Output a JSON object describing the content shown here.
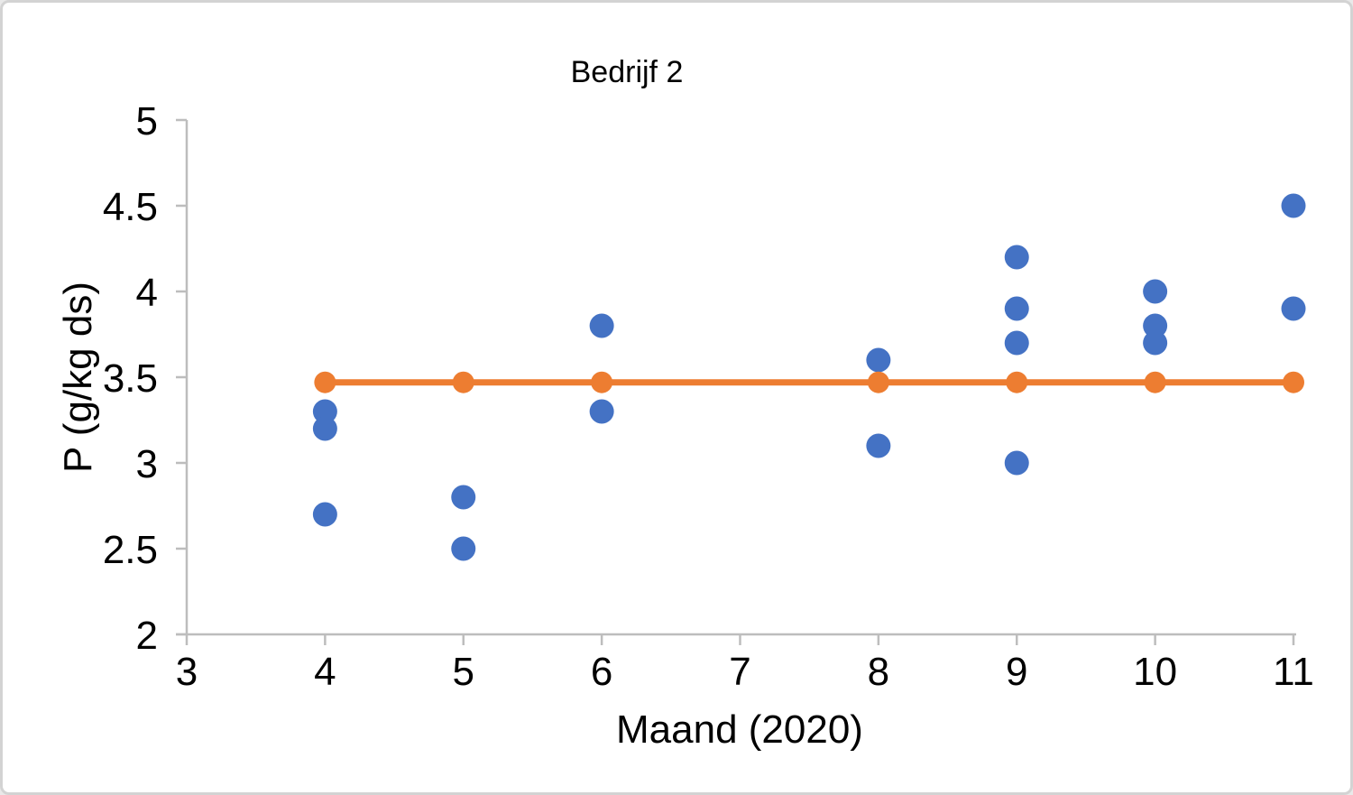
{
  "frame": {
    "background": "#FFFFFF",
    "border_color": "#D3D3D3"
  },
  "chart_data": {
    "type": "scatter",
    "title": "Bedrijf 2",
    "xlabel": "Maand (2020)",
    "ylabel": "P (g/kg ds)",
    "xlim": [
      3,
      11
    ],
    "ylim": [
      2,
      5
    ],
    "x_ticks": [
      3,
      4,
      5,
      6,
      7,
      8,
      9,
      10,
      11
    ],
    "x_tick_labels": [
      "3",
      "4",
      "5",
      "6",
      "7",
      "8",
      "9",
      "10",
      "11"
    ],
    "y_ticks": [
      2,
      2.5,
      3,
      3.5,
      4,
      4.5,
      5
    ],
    "y_tick_labels": [
      "2",
      "2.5",
      "3",
      "3.5",
      "4",
      "4.5",
      "5"
    ],
    "grid": false,
    "legend_position": "none",
    "axis_color": "#BDBDBD",
    "text_color": "#000000",
    "series": [
      {
        "name": "series-blue-measurements",
        "type": "scatter",
        "color": "#4472C4",
        "marker_radius": 13.5,
        "points": [
          [
            4,
            3.3
          ],
          [
            4,
            3.2
          ],
          [
            4,
            2.7
          ],
          [
            5,
            2.8
          ],
          [
            5,
            2.5
          ],
          [
            6,
            3.8
          ],
          [
            6,
            3.3
          ],
          [
            8,
            3.6
          ],
          [
            8,
            3.1
          ],
          [
            9,
            4.2
          ],
          [
            9,
            3.9
          ],
          [
            9,
            3.7
          ],
          [
            9,
            3.0
          ],
          [
            10,
            4.0
          ],
          [
            10,
            3.8
          ],
          [
            10,
            3.7
          ],
          [
            11,
            4.5
          ],
          [
            11,
            3.9
          ]
        ]
      },
      {
        "name": "series-orange-reference-line",
        "type": "line",
        "color": "#ED7D31",
        "marker_radius": 12,
        "line_width": 7,
        "points": [
          [
            4,
            3.47
          ],
          [
            5,
            3.47
          ],
          [
            6,
            3.47
          ],
          [
            8,
            3.47
          ],
          [
            9,
            3.47
          ],
          [
            10,
            3.47
          ],
          [
            11,
            3.47
          ]
        ]
      }
    ]
  }
}
